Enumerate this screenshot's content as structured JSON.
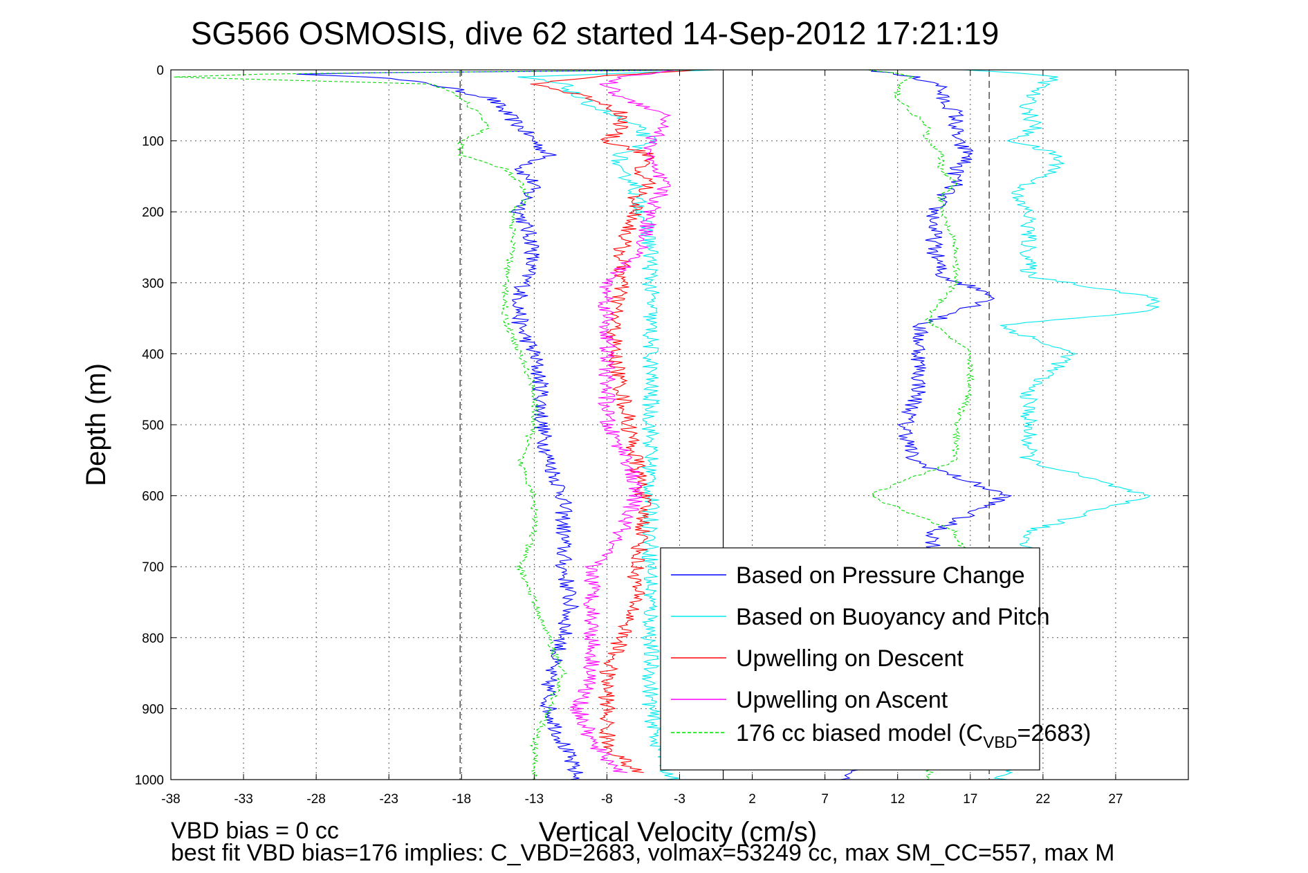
{
  "chart_data": {
    "type": "line",
    "title": "SG566 OSMOSIS, dive 62 started 14-Sep-2012 17:21:19",
    "xlabel": "Vertical Velocity (cm/s)",
    "ylabel": "Depth (m)",
    "xlim": [
      -38,
      32
    ],
    "ylim": [
      0,
      1000
    ],
    "y_reversed": true,
    "grid": true,
    "legend_position": "lower-right",
    "x_ticks": [
      -38,
      -33,
      -28,
      -23,
      -18,
      -13,
      -8,
      -3,
      2,
      7,
      12,
      17,
      22,
      27
    ],
    "y_ticks": [
      0,
      100,
      200,
      300,
      400,
      500,
      600,
      700,
      800,
      900,
      1000
    ],
    "reference_lines": {
      "zero_solid": 0,
      "dashed": [
        -18.1,
        18.3
      ]
    },
    "series": [
      {
        "name": "Based on Pressure Change",
        "color": "#0000ff",
        "depth": [
          0,
          5,
          10,
          20,
          40,
          60,
          80,
          100,
          120,
          140,
          160,
          180,
          200,
          250,
          290,
          320,
          360,
          400,
          450,
          500,
          550,
          600,
          650,
          700,
          750,
          800,
          850,
          900,
          950,
          1000
        ],
        "descent": [
          -1,
          -30,
          -24,
          -20,
          -16,
          -15,
          -14,
          -13,
          -12,
          -14,
          -13,
          -13.5,
          -14,
          -13,
          -13.5,
          -14,
          -14,
          -13,
          -12.5,
          -12.5,
          -12,
          -11,
          -11,
          -11,
          -10.5,
          -11,
          -12,
          -12,
          -11,
          -10
        ],
        "ascent": [
          10,
          11.5,
          13,
          15,
          15,
          16,
          16,
          16,
          17,
          16,
          16,
          15,
          14.5,
          14.5,
          15,
          19,
          13.5,
          13.5,
          13.5,
          12.5,
          13,
          19.5,
          14.5,
          14.5,
          14,
          13.5,
          13.5,
          12.5,
          12,
          8
        ]
      },
      {
        "name": "Based on Buoyancy and Pitch",
        "color": "#00e8ee",
        "depth": [
          0,
          10,
          20,
          40,
          60,
          80,
          100,
          120,
          140,
          160,
          180,
          200,
          250,
          290,
          320,
          340,
          360,
          400,
          450,
          500,
          550,
          600,
          650,
          700,
          750,
          800,
          850,
          900,
          950,
          1000
        ],
        "descent": [
          -1,
          -14,
          -11,
          -10,
          -8,
          -6,
          -5,
          -7,
          -7.5,
          -6,
          -6,
          -5.5,
          -5,
          -5,
          -5,
          -5,
          -5,
          -5,
          -5,
          -5,
          -5,
          -5,
          -5,
          -5,
          -5,
          -5,
          -5,
          -5,
          -4.5,
          -3.5
        ],
        "ascent": [
          17,
          23,
          22,
          21,
          21,
          21.5,
          20,
          23,
          23,
          21,
          20,
          21,
          21,
          21,
          29.5,
          29.5,
          19,
          24,
          21,
          21,
          21,
          29,
          21,
          21,
          21,
          21,
          21,
          21,
          21,
          19
        ]
      },
      {
        "name": "Upwelling on Descent",
        "color": "#ff0000",
        "depth": [
          0,
          10,
          20,
          40,
          60,
          80,
          100,
          120,
          140,
          160,
          180,
          200,
          250,
          300,
          350,
          400,
          450,
          500,
          550,
          600,
          650,
          700,
          750,
          800,
          850,
          900,
          950,
          990
        ],
        "values": [
          -2,
          -9,
          -13,
          -9,
          -7,
          -7,
          -8,
          -5,
          -6,
          -5,
          -6,
          -6,
          -7,
          -7,
          -7.5,
          -7.5,
          -7,
          -6.5,
          -6,
          -5.5,
          -5.5,
          -6,
          -6,
          -7,
          -8,
          -8,
          -8,
          -6
        ]
      },
      {
        "name": "Upwelling on Ascent",
        "color": "#ff00ff",
        "depth": [
          0,
          10,
          20,
          40,
          60,
          80,
          100,
          120,
          140,
          160,
          200,
          250,
          300,
          350,
          400,
          450,
          500,
          550,
          600,
          650,
          700,
          750,
          800,
          850,
          900,
          950,
          990
        ],
        "values": [
          -3,
          -7,
          -8,
          -7,
          -4,
          -4,
          -5,
          -5,
          -5,
          -4,
          -5,
          -5.5,
          -8,
          -8,
          -8,
          -8,
          -8,
          -6.5,
          -6,
          -7,
          -9,
          -9,
          -9,
          -9,
          -10,
          -9,
          -7
        ]
      },
      {
        "name": "176 cc biased model (C_VBD=2683)",
        "label_main": "176 cc biased model (C",
        "label_sub": "VBD",
        "label_tail": "=2683)",
        "color": "#00dd00",
        "dashed": true,
        "depth": [
          0,
          5,
          10,
          20,
          40,
          60,
          80,
          100,
          120,
          140,
          160,
          180,
          200,
          250,
          300,
          350,
          400,
          450,
          500,
          550,
          600,
          650,
          700,
          750,
          800,
          850,
          900,
          950,
          1000
        ],
        "descent": [
          -1,
          -30,
          -38,
          -20,
          -18,
          -17,
          -16,
          -18,
          -18,
          -15,
          -14,
          -13.5,
          -14.5,
          -14.5,
          -15,
          -15,
          -14,
          -13,
          -13,
          -14,
          -13,
          -13,
          -14,
          -13,
          -12,
          -11,
          -12,
          -13,
          -13
        ],
        "ascent": [
          10,
          12,
          13,
          12,
          12,
          13,
          14,
          14,
          15,
          15,
          16,
          15,
          15,
          16,
          16,
          14,
          17,
          17,
          16,
          16,
          10,
          16,
          17,
          17,
          16,
          16,
          15,
          15,
          14
        ]
      }
    ]
  },
  "footer": {
    "line1": "VBD bias = 0 cc",
    "line2": "best fit VBD bias=176 implies: C_VBD=2683, volmax=53249 cc, max SM_CC=557, max M"
  }
}
